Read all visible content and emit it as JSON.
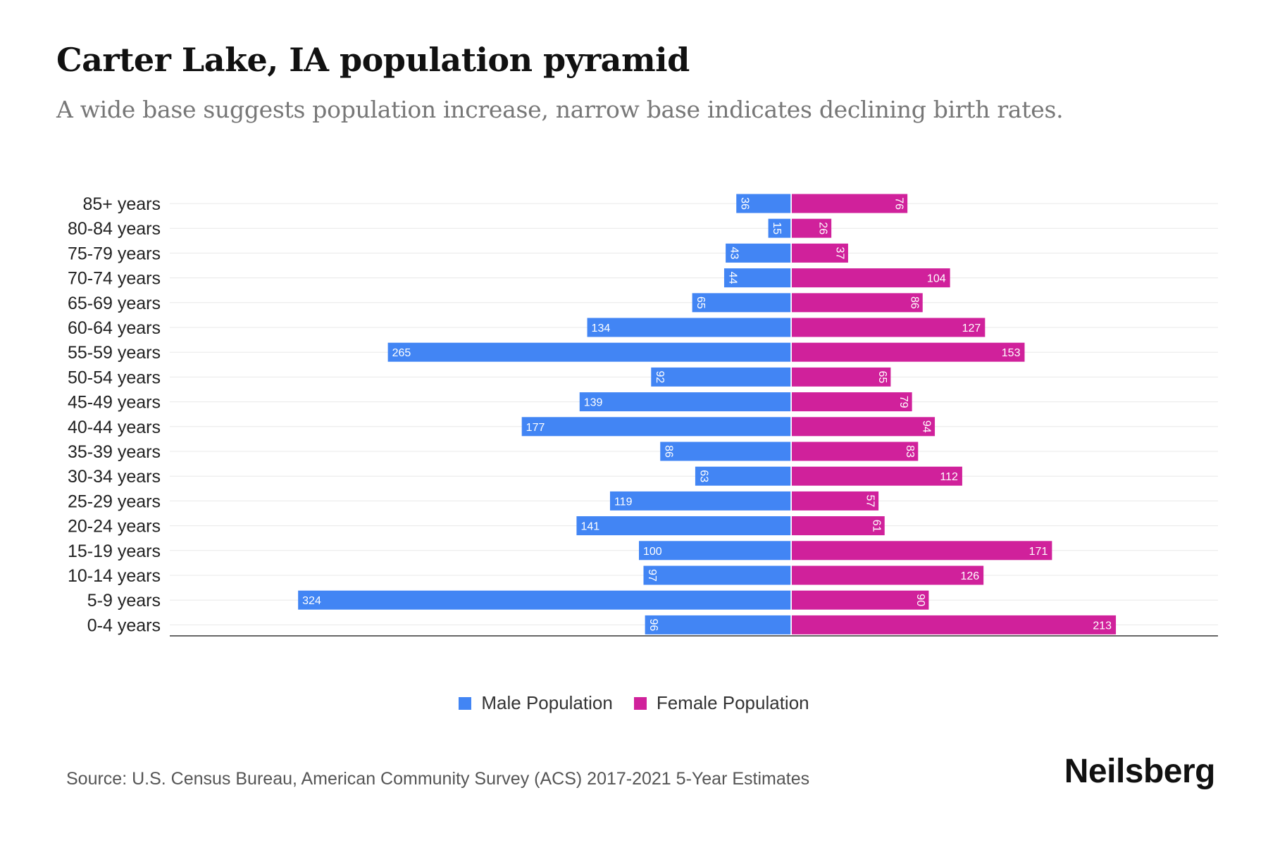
{
  "header": {
    "title": "Carter Lake, IA population pyramid",
    "subtitle": "A wide base suggests population increase, narrow base indicates declining birth rates."
  },
  "legend": {
    "male_label": "Male Population",
    "female_label": "Female Population"
  },
  "colors": {
    "male": "#4285f4",
    "female": "#d0219b",
    "grid": "#e8e8e8",
    "axis": "#333333"
  },
  "footer": {
    "source": "Source: U.S. Census Bureau, American Community Survey (ACS) 2017-2021 5-Year Estimates",
    "brand": "Neilsberg"
  },
  "chart_data": {
    "type": "bar",
    "orientation": "horizontal-diverging",
    "title": "Carter Lake, IA population pyramid",
    "categories": [
      "85+ years",
      "80-84 years",
      "75-79 years",
      "70-74 years",
      "65-69 years",
      "60-64 years",
      "55-59 years",
      "50-54 years",
      "45-49 years",
      "40-44 years",
      "35-39 years",
      "30-34 years",
      "25-29 years",
      "20-24 years",
      "15-19 years",
      "10-14 years",
      "5-9 years",
      "0-4 years"
    ],
    "series": [
      {
        "name": "Male Population",
        "values": [
          36,
          15,
          43,
          44,
          65,
          134,
          265,
          92,
          139,
          177,
          86,
          63,
          119,
          141,
          100,
          97,
          324,
          96
        ]
      },
      {
        "name": "Female Population",
        "values": [
          76,
          26,
          37,
          104,
          86,
          127,
          153,
          65,
          79,
          94,
          83,
          112,
          57,
          61,
          171,
          126,
          90,
          213
        ]
      }
    ],
    "xlim": [
      -355,
      242
    ],
    "grid": true,
    "legend_position": "bottom-center"
  }
}
